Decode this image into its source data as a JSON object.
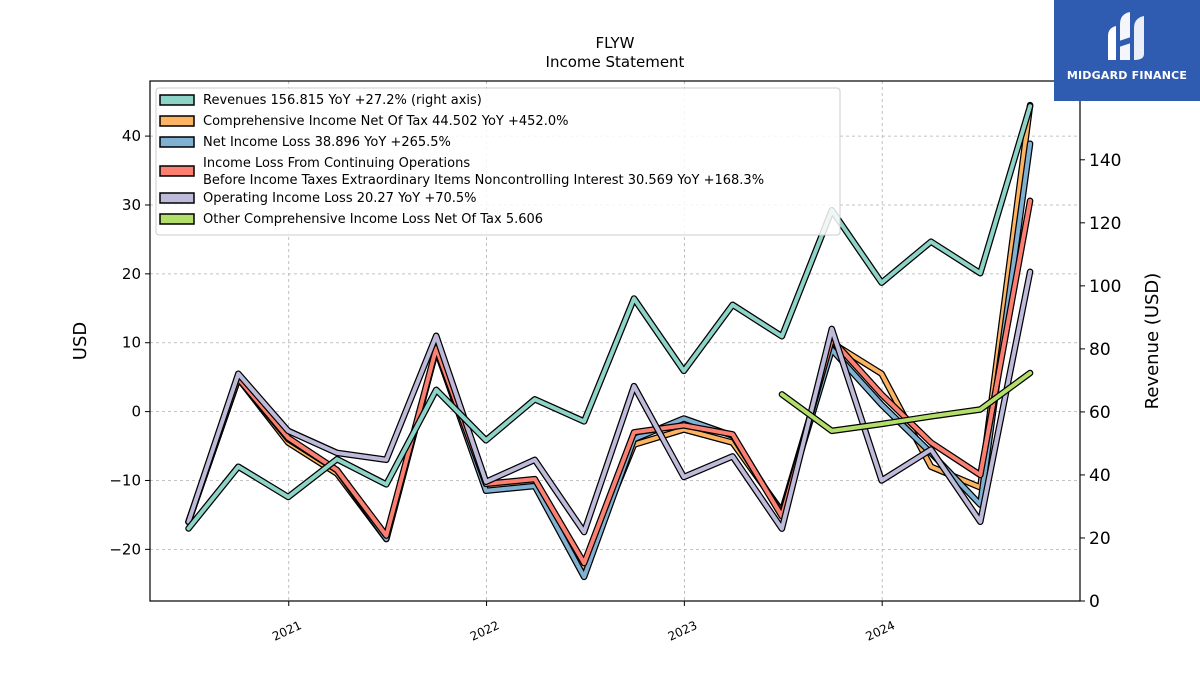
{
  "logo": {
    "text": "MIDGARD FINANCE",
    "color": "#2f5bb0"
  },
  "chart_data": {
    "type": "line",
    "title": "FLYW",
    "subtitle": "Income Statement",
    "ylabel_left": "USD",
    "ylabel_right": "Revenue (USD)",
    "ylim_left": [
      -27.5,
      48
    ],
    "ylim_right": [
      0,
      165
    ],
    "yticks_left": [
      -20,
      -10,
      0,
      10,
      20,
      30,
      40
    ],
    "yticks_left_labels": [
      "−20",
      "−10",
      "0",
      "10",
      "20",
      "30",
      "40"
    ],
    "yticks_right": [
      0,
      20,
      40,
      60,
      80,
      100,
      120,
      140
    ],
    "xlim": [
      "2020-04-20",
      "2024-12-31"
    ],
    "xticks": [
      "2021-01-01",
      "2022-01-01",
      "2023-01-01",
      "2024-01-01"
    ],
    "xtick_labels": [
      "2021",
      "2022",
      "2023",
      "2024"
    ],
    "grid": true,
    "legend_position": "upper-left",
    "series": [
      {
        "name": "Revenues  156.815 YoY +27.2% (right axis)",
        "axis": "right",
        "color": "#8dd3c7",
        "x": [
          "2020-06-30",
          "2020-09-30",
          "2020-12-31",
          "2021-03-31",
          "2021-06-30",
          "2021-09-30",
          "2021-12-31",
          "2022-03-31",
          "2022-06-30",
          "2022-09-30",
          "2022-12-31",
          "2023-03-31",
          "2023-06-30",
          "2023-09-30",
          "2023-12-31",
          "2024-03-31",
          "2024-06-30",
          "2024-09-30"
        ],
        "values": [
          23,
          42.6,
          33,
          45,
          37,
          67,
          51,
          64,
          57,
          96,
          73,
          94,
          84,
          124,
          101,
          114,
          104,
          157
        ]
      },
      {
        "name": "Comprehensive Income Net Of Tax  44.502 YoY +452.0%",
        "axis": "left",
        "color": "#fdb462",
        "x": [
          "2020-06-30",
          "2020-09-30",
          "2020-12-31",
          "2021-03-31",
          "2021-06-30",
          "2021-09-30",
          "2021-12-31",
          "2022-03-31",
          "2022-06-30",
          "2022-09-30",
          "2022-12-31",
          "2023-03-31",
          "2023-06-30",
          "2023-09-30",
          "2023-12-31",
          "2024-03-31",
          "2024-06-30",
          "2024-09-30"
        ],
        "values": [
          -16,
          4.8,
          -4.5,
          -9,
          -18.5,
          9,
          -11,
          -10.2,
          -22.5,
          -4.8,
          -2.6,
          -4.5,
          -14.5,
          10,
          5.5,
          -8,
          -11,
          44.5
        ]
      },
      {
        "name": "Net Income Loss  38.896 YoY +265.5%",
        "axis": "left",
        "color": "#80b1d3",
        "x": [
          "2020-06-30",
          "2020-09-30",
          "2020-12-31",
          "2021-03-31",
          "2021-06-30",
          "2021-09-30",
          "2021-12-31",
          "2022-03-31",
          "2022-06-30",
          "2022-09-30",
          "2022-12-31",
          "2023-03-31",
          "2023-06-30",
          "2023-09-30",
          "2023-12-31",
          "2024-03-31",
          "2024-06-30",
          "2024-09-30"
        ],
        "values": [
          -16,
          4.8,
          -4,
          -8.5,
          -18.5,
          9,
          -11.5,
          -10.8,
          -24,
          -4,
          -1,
          -3.5,
          -15,
          9,
          1,
          -6,
          -13.5,
          38.9
        ]
      },
      {
        "name": "Income Loss From Continuing Operations\nBefore Income Taxes Extraordinary Items Noncontrolling Interest  30.569 YoY +168.3%",
        "axis": "left",
        "color": "#fb8072",
        "x": [
          "2020-06-30",
          "2020-09-30",
          "2020-12-31",
          "2021-03-31",
          "2021-06-30",
          "2021-09-30",
          "2021-12-31",
          "2022-03-31",
          "2022-06-30",
          "2022-09-30",
          "2022-12-31",
          "2023-03-31",
          "2023-06-30",
          "2023-09-30",
          "2023-12-31",
          "2024-03-31",
          "2024-06-30",
          "2024-09-30"
        ],
        "values": [
          -16,
          4.8,
          -3.8,
          -8.5,
          -18,
          9.2,
          -10.5,
          -9.8,
          -22,
          -3,
          -2,
          -3.3,
          -15.2,
          10.5,
          2.5,
          -4.5,
          -9.2,
          30.6
        ]
      },
      {
        "name": "Operating Income Loss  20.27 YoY +70.5%",
        "axis": "left",
        "color": "#bebada",
        "x": [
          "2020-06-30",
          "2020-09-30",
          "2020-12-31",
          "2021-03-31",
          "2021-06-30",
          "2021-09-30",
          "2021-12-31",
          "2022-03-31",
          "2022-06-30",
          "2022-09-30",
          "2022-12-31",
          "2023-03-31",
          "2023-06-30",
          "2023-09-30",
          "2023-12-31",
          "2024-03-31",
          "2024-06-30",
          "2024-09-30"
        ],
        "values": [
          -16,
          5.5,
          -2.8,
          -6,
          -7,
          11,
          -10.2,
          -7,
          -17.5,
          3.7,
          -9.5,
          -6.5,
          -17,
          12,
          -10,
          -5.5,
          -16,
          20.3
        ]
      },
      {
        "name": "Other Comprehensive Income Loss Net Of Tax  5.606",
        "axis": "left",
        "color": "#b3de69",
        "x": [
          "2023-06-30",
          "2023-09-30",
          "2023-12-31",
          "2024-03-31",
          "2024-06-30",
          "2024-09-30"
        ],
        "values": [
          2.5,
          -2.8,
          -1.8,
          -0.7,
          0.3,
          5.6
        ]
      }
    ]
  }
}
